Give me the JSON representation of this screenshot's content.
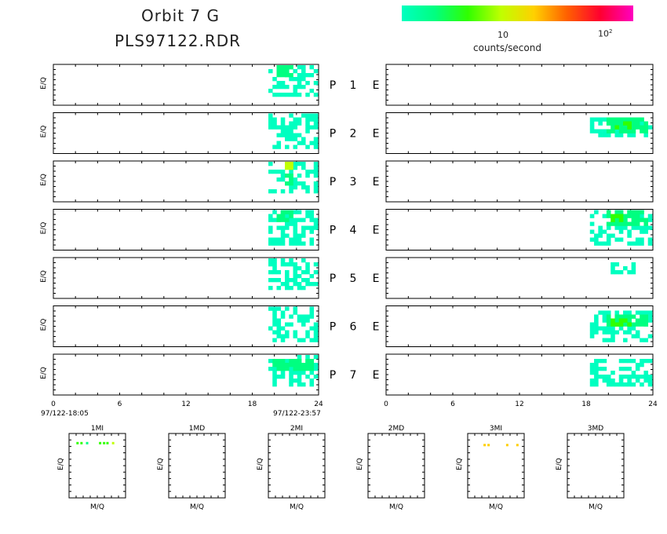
{
  "title": {
    "line1": "Orbit 7 G",
    "line2": "PLS97122.RDR"
  },
  "colorbar": {
    "colors": [
      "#00ffc0",
      "#00ff80",
      "#30ff00",
      "#c0ff00",
      "#ffd000",
      "#ff6000",
      "#ff0030",
      "#ff00c0"
    ],
    "tick1": "10",
    "tick2_base": "10",
    "tick2_exp": "2",
    "unit": "counts/second"
  },
  "chart_data": [
    {
      "type": "heatmap",
      "name": "proton-panels",
      "ylabel": "E/Q",
      "xticks": [
        "0",
        "6",
        "12",
        "18",
        "24"
      ],
      "xlim": [
        0,
        24
      ],
      "start_label": "97/122-18:05",
      "end_label": "97/122-23:57",
      "series": [
        {
          "name": "P 1",
          "activity": [
            {
              "x": [
                19.5,
                24
              ],
              "y": [
                0.2,
                1
              ],
              "level": 1
            },
            {
              "x": [
                20.5,
                21.5
              ],
              "y": [
                0.7,
                0.9
              ],
              "level": 2
            }
          ]
        },
        {
          "name": "P 2",
          "activity": [
            {
              "x": [
                19.5,
                24
              ],
              "y": [
                0.1,
                1
              ],
              "level": 1
            }
          ]
        },
        {
          "name": "P 3",
          "activity": [
            {
              "x": [
                19.5,
                24
              ],
              "y": [
                0.2,
                1
              ],
              "level": 1
            },
            {
              "x": [
                21,
                21.6
              ],
              "y": [
                0.4,
                0.95
              ],
              "level": 2
            },
            {
              "x": [
                21.1,
                21.4
              ],
              "y": [
                0.85,
                0.95
              ],
              "level": 4
            }
          ]
        },
        {
          "name": "P 4",
          "activity": [
            {
              "x": [
                19.5,
                24
              ],
              "y": [
                0.1,
                1
              ],
              "level": 1
            },
            {
              "x": [
                20.5,
                21.5
              ],
              "y": [
                0.75,
                0.95
              ],
              "level": 2
            }
          ]
        },
        {
          "name": "P 5",
          "activity": [
            {
              "x": [
                19.5,
                24
              ],
              "y": [
                0.2,
                1
              ],
              "level": 1
            }
          ]
        },
        {
          "name": "P 6",
          "activity": [
            {
              "x": [
                19.5,
                24
              ],
              "y": [
                0.1,
                1
              ],
              "level": 1
            }
          ]
        },
        {
          "name": "P 7",
          "activity": [
            {
              "x": [
                19.5,
                24
              ],
              "y": [
                0.2,
                1
              ],
              "level": 1
            },
            {
              "x": [
                20,
                23.5
              ],
              "y": [
                0.7,
                0.85
              ],
              "level": 2
            }
          ]
        }
      ]
    },
    {
      "type": "heatmap",
      "name": "electron-panels",
      "xticks": [
        "0",
        "6",
        "12",
        "18",
        "24"
      ],
      "xlim": [
        0,
        24
      ],
      "series": [
        {
          "name": "E 1",
          "activity": [
            {
              "x": [
                21,
                21.2
              ],
              "y": [
                0.4,
                0.5
              ],
              "level": 1
            }
          ]
        },
        {
          "name": "E 2",
          "activity": [
            {
              "x": [
                18.5,
                24
              ],
              "y": [
                0.4,
                0.8
              ],
              "level": 1
            },
            {
              "x": [
                20,
                23.5
              ],
              "y": [
                0.55,
                0.8
              ],
              "level": 2
            },
            {
              "x": [
                20.8,
                22
              ],
              "y": [
                0.6,
                0.75
              ],
              "level": 3
            }
          ]
        },
        {
          "name": "E 3",
          "activity": []
        },
        {
          "name": "E 4",
          "activity": [
            {
              "x": [
                18.5,
                24
              ],
              "y": [
                0.1,
                0.95
              ],
              "level": 1
            },
            {
              "x": [
                20,
                23.5
              ],
              "y": [
                0.7,
                0.9
              ],
              "level": 2
            },
            {
              "x": [
                20.3,
                21.3
              ],
              "y": [
                0.75,
                0.85
              ],
              "level": 3
            }
          ]
        },
        {
          "name": "E 5",
          "activity": [
            {
              "x": [
                20.5,
                22.5
              ],
              "y": [
                0.7,
                0.8
              ],
              "level": 1
            }
          ]
        },
        {
          "name": "E 6",
          "activity": [
            {
              "x": [
                18.5,
                24
              ],
              "y": [
                0.1,
                0.8
              ],
              "level": 1
            },
            {
              "x": [
                20,
                23.5
              ],
              "y": [
                0.5,
                0.75
              ],
              "level": 2
            },
            {
              "x": [
                20.6,
                22
              ],
              "y": [
                0.55,
                0.7
              ],
              "level": 3
            }
          ]
        },
        {
          "name": "E 7",
          "activity": [
            {
              "x": [
                18.5,
                24
              ],
              "y": [
                0.2,
                0.8
              ],
              "level": 1
            }
          ]
        }
      ]
    },
    {
      "type": "scatter",
      "name": "mass-panels",
      "xlabel": "M/Q",
      "ylabel": "E/Q",
      "panels": [
        {
          "title": "1MI",
          "points": [
            [
              0.15,
              0.85,
              2
            ],
            [
              0.22,
              0.85,
              2
            ],
            [
              0.32,
              0.85,
              1
            ],
            [
              0.55,
              0.85,
              2
            ],
            [
              0.62,
              0.85,
              2
            ],
            [
              0.68,
              0.85,
              2
            ],
            [
              0.78,
              0.85,
              3
            ]
          ]
        },
        {
          "title": "1MD",
          "points": []
        },
        {
          "title": "2MI",
          "points": []
        },
        {
          "title": "2MD",
          "points": []
        },
        {
          "title": "3MI",
          "points": [
            [
              0.3,
              0.82,
              4
            ],
            [
              0.37,
              0.82,
              4
            ],
            [
              0.7,
              0.82,
              4
            ],
            [
              0.88,
              0.82,
              4
            ]
          ]
        },
        {
          "title": "3MD",
          "points": []
        }
      ]
    }
  ]
}
